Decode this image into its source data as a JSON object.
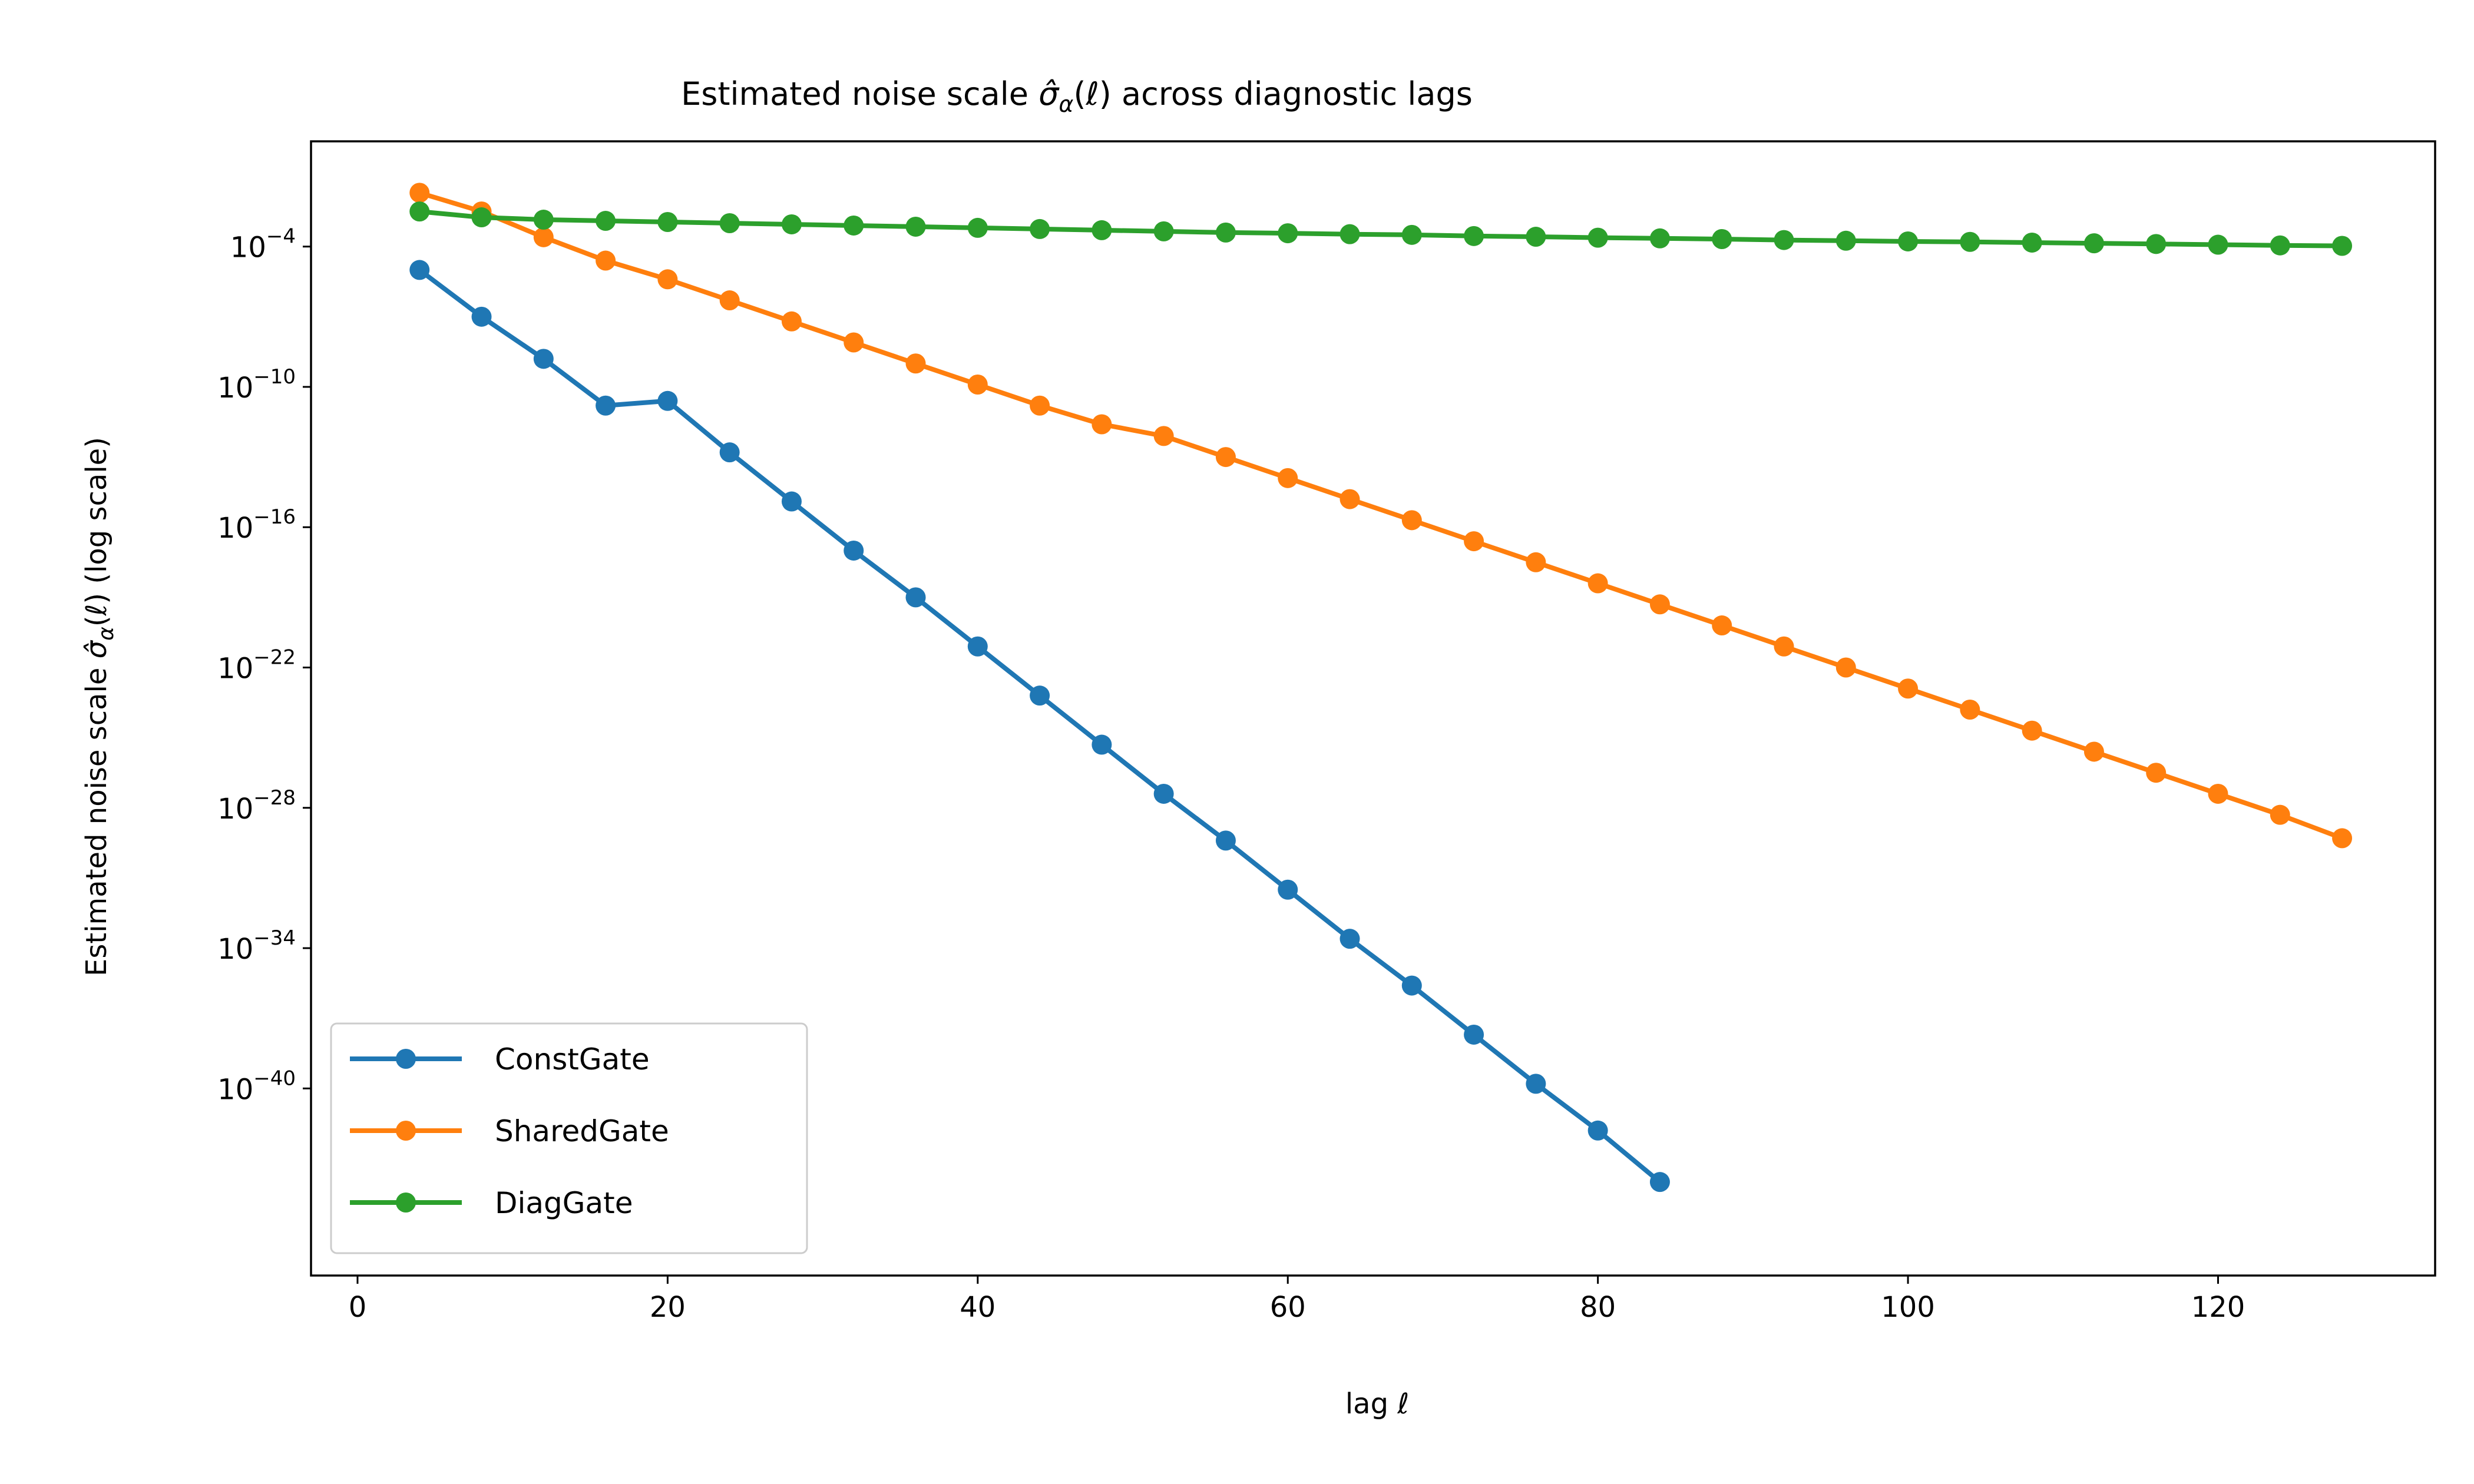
{
  "chart_data": {
    "type": "line",
    "title": "Estimated noise scale σ̂α(ℓ) across diagnostic lags",
    "title_parts": {
      "prefix": "Estimated noise scale ",
      "symbol": "σ̂",
      "subscript": "α",
      "argument": "(ℓ)",
      "suffix": " across diagnostic lags"
    },
    "xlabel": "lag ℓ",
    "ylabel": "Estimated noise scale σ̂α(ℓ) (log scale)",
    "ylabel_parts": {
      "prefix": "Estimated noise scale ",
      "symbol": "σ̂",
      "subscript": "α",
      "suffix": "(ℓ) (log scale)"
    },
    "yscale": "log",
    "xlim": [
      -3,
      134
    ],
    "ylim_log10": [
      -48,
      0.5
    ],
    "x_ticks": [
      0,
      20,
      40,
      60,
      80,
      100,
      120
    ],
    "y_ticks": [
      {
        "base": "10",
        "exp": "−4",
        "log10": -4
      },
      {
        "base": "10",
        "exp": "−10",
        "log10": -10
      },
      {
        "base": "10",
        "exp": "−16",
        "log10": -16
      },
      {
        "base": "10",
        "exp": "−22",
        "log10": -22
      },
      {
        "base": "10",
        "exp": "−28",
        "log10": -28
      },
      {
        "base": "10",
        "exp": "−34",
        "log10": -34
      },
      {
        "base": "10",
        "exp": "−40",
        "log10": -40
      }
    ],
    "legend_position": "lower-left",
    "series": [
      {
        "name": "ConstGate",
        "color": "#1f77b4",
        "x": [
          4,
          8,
          12,
          16,
          20,
          24,
          28,
          32,
          36,
          40,
          44,
          48,
          52,
          56,
          60,
          64,
          68,
          72,
          76,
          80,
          84
        ],
        "log10_y": [
          -5.0,
          -7.0,
          -8.8,
          -10.8,
          -10.6,
          -12.8,
          -14.9,
          -17.0,
          -19.0,
          -21.1,
          -23.2,
          -25.3,
          -27.4,
          -29.4,
          -31.5,
          -33.6,
          -35.6,
          -37.7,
          -39.8,
          -41.8,
          -44.0
        ]
      },
      {
        "name": "SharedGate",
        "color": "#ff7f0e",
        "x": [
          4,
          8,
          12,
          16,
          20,
          24,
          28,
          32,
          36,
          40,
          44,
          48,
          52,
          56,
          60,
          64,
          68,
          72,
          76,
          80,
          84,
          88,
          92,
          96,
          100,
          104,
          108,
          112,
          116,
          120,
          124,
          128
        ],
        "log10_y": [
          -1.7,
          -2.5,
          -3.6,
          -4.6,
          -5.4,
          -6.3,
          -7.2,
          -8.1,
          -9.0,
          -9.9,
          -10.8,
          -11.6,
          -12.1,
          -13.0,
          -13.9,
          -14.8,
          -15.7,
          -16.6,
          -17.5,
          -18.4,
          -19.3,
          -20.2,
          -21.1,
          -22.0,
          -22.9,
          -23.8,
          -24.7,
          -25.6,
          -26.5,
          -27.4,
          -28.3,
          -29.3
        ]
      },
      {
        "name": "DiagGate",
        "color": "#2ca02c",
        "x": [
          4,
          8,
          12,
          16,
          20,
          24,
          28,
          32,
          36,
          40,
          44,
          48,
          52,
          56,
          60,
          64,
          68,
          72,
          76,
          80,
          84,
          88,
          92,
          96,
          100,
          104,
          108,
          112,
          116,
          120,
          124,
          128
        ],
        "log10_y": [
          -2.5,
          -2.75,
          -2.85,
          -2.9,
          -2.95,
          -3.0,
          -3.05,
          -3.1,
          -3.15,
          -3.2,
          -3.25,
          -3.3,
          -3.35,
          -3.4,
          -3.43,
          -3.47,
          -3.5,
          -3.55,
          -3.58,
          -3.62,
          -3.65,
          -3.68,
          -3.72,
          -3.75,
          -3.78,
          -3.8,
          -3.83,
          -3.86,
          -3.89,
          -3.92,
          -3.95,
          -3.97
        ]
      }
    ]
  }
}
